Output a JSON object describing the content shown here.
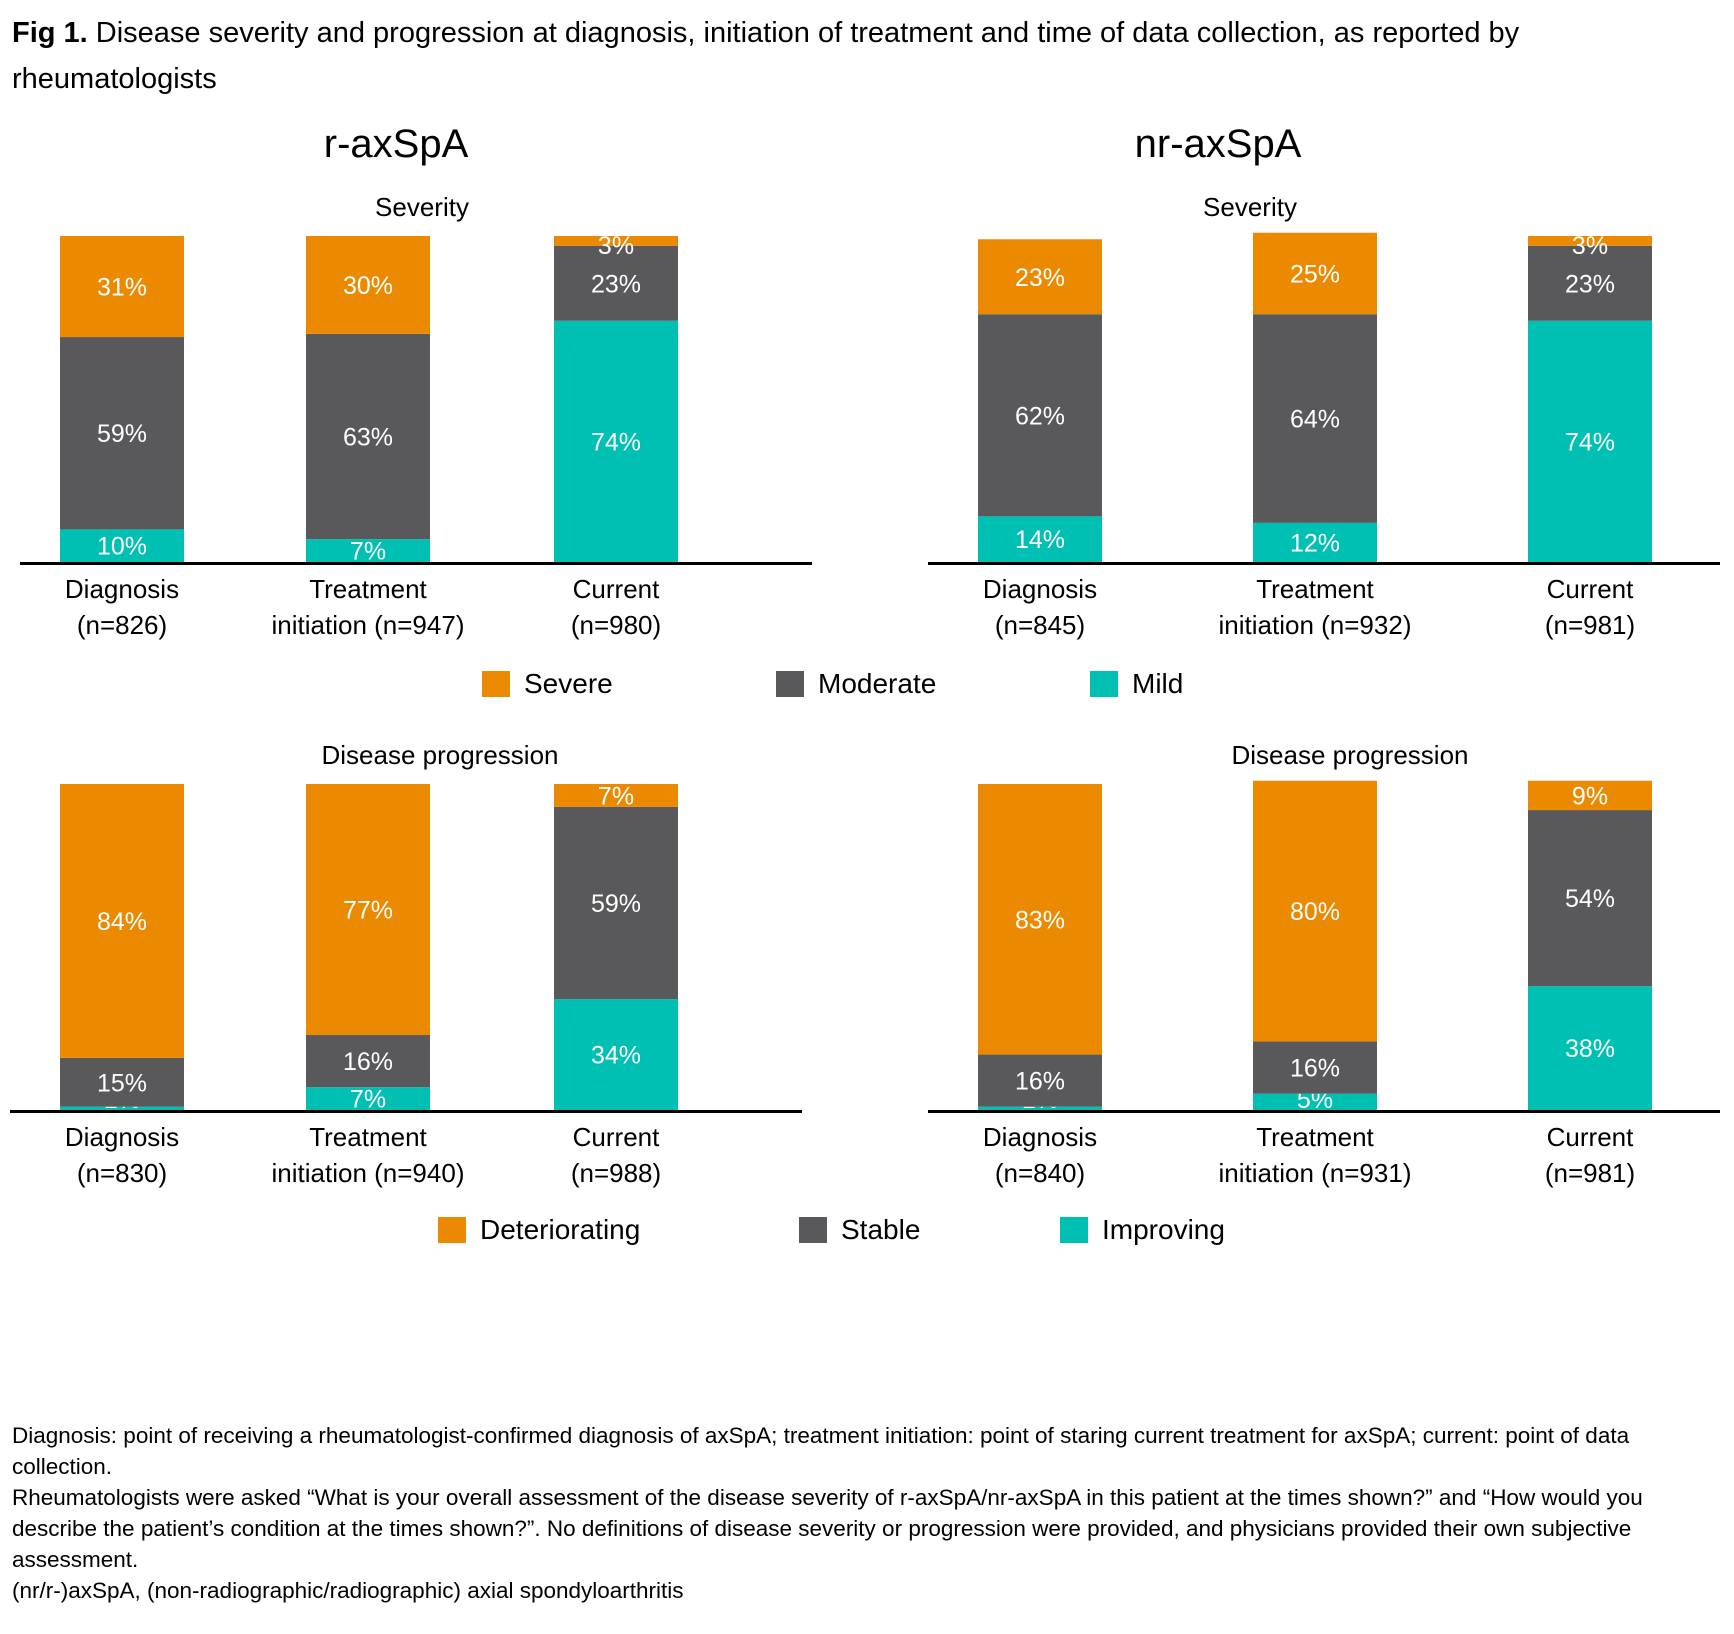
{
  "figure": {
    "label": "Fig 1.",
    "title": " Disease severity and progression at diagnosis, initiation of treatment and time of data collection, as reported by rheumatologists"
  },
  "groups": [
    {
      "title": "r-axSpA"
    },
    {
      "title": "nr-axSpA"
    }
  ],
  "colors": {
    "orange": "#EB8A00",
    "gray": "#59595C",
    "teal": "#00BFB3",
    "axis": "#000000",
    "label": "#FFFFFF"
  },
  "legends": {
    "severity": [
      {
        "label": "Severe",
        "color": "#EB8A00"
      },
      {
        "label": "Moderate",
        "color": "#59595C"
      },
      {
        "label": "Mild",
        "color": "#00BFB3"
      }
    ],
    "progression": [
      {
        "label": "Deteriorating",
        "color": "#EB8A00"
      },
      {
        "label": "Stable",
        "color": "#59595C"
      },
      {
        "label": "Improving",
        "color": "#00BFB3"
      }
    ]
  },
  "chart_data": [
    {
      "type": "bar",
      "stacked": true,
      "group": "r-axSpA",
      "title": "Severity",
      "categories": [
        [
          "Diagnosis",
          "(n=826)"
        ],
        [
          "Treatment",
          "initiation (n=947)"
        ],
        [
          "Current",
          "(n=980)"
        ]
      ],
      "series": [
        {
          "name": "Mild",
          "color": "#00BFB3",
          "values": [
            10,
            7,
            74
          ]
        },
        {
          "name": "Moderate",
          "color": "#59595C",
          "values": [
            59,
            63,
            23
          ]
        },
        {
          "name": "Severe",
          "color": "#EB8A00",
          "values": [
            31,
            30,
            3
          ]
        }
      ],
      "ylim": [
        0,
        100
      ],
      "unit": "%",
      "grid": false
    },
    {
      "type": "bar",
      "stacked": true,
      "group": "nr-axSpA",
      "title": "Severity",
      "categories": [
        [
          "Diagnosis",
          "(n=845)"
        ],
        [
          "Treatment",
          "initiation (n=932)"
        ],
        [
          "Current",
          "(n=981)"
        ]
      ],
      "series": [
        {
          "name": "Mild",
          "color": "#00BFB3",
          "values": [
            14,
            12,
            74
          ]
        },
        {
          "name": "Moderate",
          "color": "#59595C",
          "values": [
            62,
            64,
            23
          ]
        },
        {
          "name": "Severe",
          "color": "#EB8A00",
          "values": [
            23,
            25,
            3
          ]
        }
      ],
      "ylim": [
        0,
        100
      ],
      "unit": "%",
      "grid": false
    },
    {
      "type": "bar",
      "stacked": true,
      "group": "r-axSpA",
      "title": "Disease progression",
      "categories": [
        [
          "Diagnosis",
          "(n=830)"
        ],
        [
          "Treatment",
          "initiation (n=940)"
        ],
        [
          "Current",
          "(n=988)"
        ]
      ],
      "series": [
        {
          "name": "Improving",
          "color": "#00BFB3",
          "values": [
            1,
            7,
            34
          ]
        },
        {
          "name": "Stable",
          "color": "#59595C",
          "values": [
            15,
            16,
            59
          ]
        },
        {
          "name": "Deteriorating",
          "color": "#EB8A00",
          "values": [
            84,
            77,
            7
          ]
        }
      ],
      "ylim": [
        0,
        100
      ],
      "unit": "%",
      "grid": false
    },
    {
      "type": "bar",
      "stacked": true,
      "group": "nr-axSpA",
      "title": "Disease progression",
      "categories": [
        [
          "Diagnosis",
          "(n=840)"
        ],
        [
          "Treatment",
          "initiation (n=931)"
        ],
        [
          "Current",
          "(n=981)"
        ]
      ],
      "series": [
        {
          "name": "Improving",
          "color": "#00BFB3",
          "values": [
            1,
            5,
            38
          ]
        },
        {
          "name": "Stable",
          "color": "#59595C",
          "values": [
            16,
            16,
            54
          ]
        },
        {
          "name": "Deteriorating",
          "color": "#EB8A00",
          "values": [
            83,
            80,
            9
          ]
        }
      ],
      "ylim": [
        0,
        100
      ],
      "unit": "%",
      "grid": false
    }
  ],
  "notes": [
    "Diagnosis: point of receiving a rheumatologist-confirmed diagnosis of axSpA; treatment initiation: point of staring current treatment for axSpA; current: point of data collection.",
    "Rheumatologists were asked “What is your overall assessment of the disease severity of r-axSpA/nr-axSpA in this patient at the times shown?” and “How would you describe the patient’s condition at the times shown?”. No definitions of disease severity or progression were provided, and physicians provided their own subjective assessment.",
    "(nr/r-)axSpA, (non-radiographic/radiographic) axial spondyloarthritis"
  ]
}
